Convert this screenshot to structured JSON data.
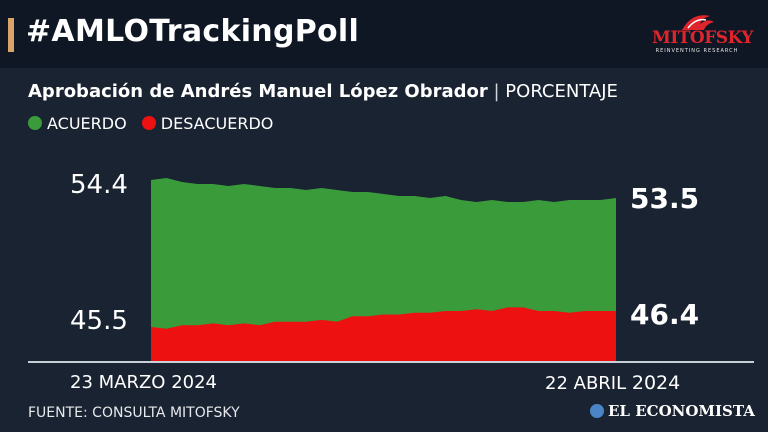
{
  "header": {
    "hashtag": "#AMLOTrackingPoll",
    "logo_text": "MITOFSKY",
    "logo_tagline": "REINVENTING RESEARCH"
  },
  "subtitle": {
    "main": "Aprobación de Andrés Manuel López Obrador",
    "separator": " | ",
    "unit": "PORCENTAJE"
  },
  "legend": {
    "acuerdo": "ACUERDO",
    "desacuerdo": "DESACUERDO"
  },
  "colors": {
    "acuerdo": "#3a9b3a",
    "desacuerdo": "#ee1111",
    "accent": "#d9a46a"
  },
  "chart_data": {
    "type": "area",
    "x_start_label": "23 MARZO 2024",
    "x_end_label_day_month": "22 ABRIL",
    "x_end_label_year": "2024",
    "ytick_top": "54.4",
    "ytick_bottom": "45.5",
    "series": [
      {
        "name": "ACUERDO",
        "first_label": "54.4",
        "last_label": "53.5",
        "values": [
          54.4,
          54.5,
          54.3,
          54.2,
          54.2,
          54.1,
          54.2,
          54.1,
          54.0,
          54.0,
          53.9,
          54.0,
          53.9,
          53.8,
          53.8,
          53.7,
          53.6,
          53.6,
          53.5,
          53.6,
          53.4,
          53.3,
          53.4,
          53.3,
          53.3,
          53.4,
          53.3,
          53.4,
          53.4,
          53.4,
          53.5
        ]
      },
      {
        "name": "DESACUERDO",
        "first_label": "45.5",
        "last_label": "46.4",
        "values": [
          45.5,
          45.4,
          45.6,
          45.6,
          45.7,
          45.6,
          45.7,
          45.6,
          45.8,
          45.8,
          45.8,
          45.9,
          45.8,
          46.1,
          46.1,
          46.2,
          46.2,
          46.3,
          46.3,
          46.4,
          46.4,
          46.5,
          46.4,
          46.6,
          46.6,
          46.4,
          46.4,
          46.3,
          46.4,
          46.4,
          46.4
        ]
      }
    ]
  },
  "footer": {
    "source": "FUENTE: CONSULTA MITOFSKY",
    "publisher": "EL ECONOMISTA"
  }
}
